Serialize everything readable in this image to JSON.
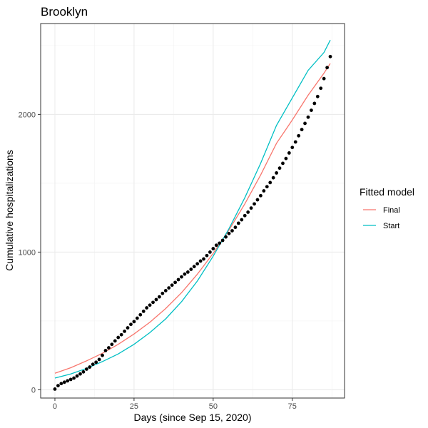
{
  "chart_data": {
    "type": "scatter",
    "title": "Brooklyn",
    "xlabel": "Days (since Sep 15, 2020)",
    "ylabel": "Cumulative hospitalizations",
    "xlim": [
      -4.5,
      91.5
    ],
    "ylim": [
      -60,
      2660
    ],
    "x_ticks": [
      0,
      25,
      50,
      75
    ],
    "y_ticks": [
      0,
      1000,
      2000
    ],
    "grid": true,
    "legend": {
      "title": "Fitted model",
      "position": "right"
    },
    "points": {
      "x": [
        0,
        1,
        2,
        3,
        4,
        5,
        6,
        7,
        8,
        9,
        10,
        11,
        12,
        13,
        14,
        15,
        16,
        17,
        18,
        19,
        20,
        21,
        22,
        23,
        24,
        25,
        26,
        27,
        28,
        29,
        30,
        31,
        32,
        33,
        34,
        35,
        36,
        37,
        38,
        39,
        40,
        41,
        42,
        43,
        44,
        45,
        46,
        47,
        48,
        49,
        50,
        51,
        52,
        53,
        54,
        55,
        56,
        57,
        58,
        59,
        60,
        61,
        62,
        63,
        64,
        65,
        66,
        67,
        68,
        69,
        70,
        71,
        72,
        73,
        74,
        75,
        76,
        77,
        78,
        79,
        80,
        81,
        82,
        83,
        84,
        85,
        86,
        87
      ],
      "y": [
        5,
        30,
        45,
        55,
        65,
        75,
        85,
        100,
        115,
        130,
        150,
        165,
        185,
        200,
        220,
        250,
        285,
        305,
        330,
        355,
        380,
        400,
        425,
        450,
        475,
        495,
        520,
        545,
        570,
        595,
        615,
        635,
        655,
        675,
        700,
        720,
        740,
        760,
        780,
        800,
        820,
        840,
        855,
        875,
        895,
        915,
        935,
        950,
        975,
        1000,
        1025,
        1050,
        1065,
        1085,
        1110,
        1135,
        1155,
        1180,
        1210,
        1235,
        1265,
        1290,
        1320,
        1350,
        1380,
        1410,
        1445,
        1475,
        1505,
        1540,
        1575,
        1610,
        1645,
        1680,
        1720,
        1760,
        1800,
        1845,
        1890,
        1935,
        1980,
        2030,
        2080,
        2130,
        2190,
        2260,
        2340,
        2420
      ]
    },
    "series": [
      {
        "name": "Final",
        "color": "#F8766D",
        "x": [
          0,
          5,
          10,
          15,
          20,
          25,
          30,
          35,
          40,
          45,
          50,
          55,
          60,
          65,
          70,
          75,
          80,
          85,
          87
        ],
        "y": [
          120,
          160,
          210,
          265,
          330,
          405,
          490,
          590,
          705,
          840,
          990,
          1160,
          1350,
          1560,
          1790,
          1960,
          2140,
          2300,
          2370
        ]
      },
      {
        "name": "Start",
        "color": "#00BFC4",
        "x": [
          0,
          5,
          10,
          15,
          20,
          25,
          30,
          35,
          40,
          45,
          50,
          55,
          60,
          65,
          70,
          75,
          80,
          85,
          87
        ],
        "y": [
          85,
          115,
          155,
          205,
          260,
          330,
          415,
          515,
          640,
          790,
          970,
          1170,
          1395,
          1645,
          1920,
          2120,
          2320,
          2450,
          2540
        ]
      }
    ]
  }
}
